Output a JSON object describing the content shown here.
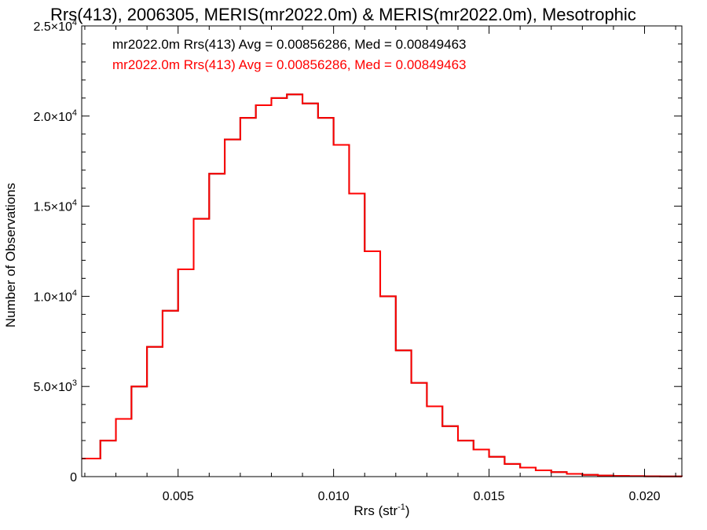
{
  "chart_data": {
    "type": "step-histogram",
    "title": "Rrs(413), 2006305, MERIS(mr2022.0m) & MERIS(mr2022.0m), Mesotrophic",
    "xlabel": "Rrs (str",
    "xlabel_sup": "-1",
    "xlabel_close": ")",
    "ylabel": "Number of Observations",
    "xlim": [
      0.0019,
      0.0212
    ],
    "ylim": [
      0,
      25000
    ],
    "x_ticks": [
      {
        "value": 0.005,
        "label": "0.005"
      },
      {
        "value": 0.01,
        "label": "0.010"
      },
      {
        "value": 0.015,
        "label": "0.015"
      },
      {
        "value": 0.02,
        "label": "0.020"
      }
    ],
    "y_ticks": [
      {
        "value": 0,
        "mant": "0",
        "exp": ""
      },
      {
        "value": 5000,
        "mant": "5.0×10",
        "exp": "3"
      },
      {
        "value": 10000,
        "mant": "1.0×10",
        "exp": "4"
      },
      {
        "value": 15000,
        "mant": "1.5×10",
        "exp": "4"
      },
      {
        "value": 20000,
        "mant": "2.0×10",
        "exp": "4"
      },
      {
        "value": 25000,
        "mant": "2.5×10",
        "exp": "4"
      }
    ],
    "legend_placement": "top-left",
    "series": [
      {
        "name": "mr2022.0m Rrs(413) Avg = 0.00856286, Med = 0.00849463",
        "color": "#000000",
        "points": [
          [
            0.0019,
            1000
          ],
          [
            0.0025,
            2000
          ],
          [
            0.003,
            3200
          ],
          [
            0.0035,
            5000
          ],
          [
            0.004,
            7200
          ],
          [
            0.0045,
            9200
          ],
          [
            0.005,
            11500
          ],
          [
            0.0055,
            14300
          ],
          [
            0.006,
            16800
          ],
          [
            0.0065,
            18700
          ],
          [
            0.007,
            19900
          ],
          [
            0.0075,
            20600
          ],
          [
            0.008,
            21000
          ],
          [
            0.0085,
            21200
          ],
          [
            0.009,
            20700
          ],
          [
            0.0095,
            19900
          ],
          [
            0.01,
            18400
          ],
          [
            0.0105,
            15700
          ],
          [
            0.011,
            12500
          ],
          [
            0.0115,
            10000
          ],
          [
            0.012,
            7000
          ],
          [
            0.0125,
            5200
          ],
          [
            0.013,
            3900
          ],
          [
            0.0135,
            2800
          ],
          [
            0.014,
            2000
          ],
          [
            0.0145,
            1500
          ],
          [
            0.015,
            1100
          ],
          [
            0.0155,
            700
          ],
          [
            0.016,
            500
          ],
          [
            0.0165,
            350
          ],
          [
            0.017,
            250
          ],
          [
            0.0175,
            150
          ],
          [
            0.018,
            100
          ],
          [
            0.0185,
            60
          ],
          [
            0.019,
            40
          ],
          [
            0.0195,
            25
          ],
          [
            0.02,
            15
          ],
          [
            0.0205,
            10
          ],
          [
            0.0212,
            5
          ]
        ]
      },
      {
        "name": "mr2022.0m Rrs(413) Avg = 0.00856286, Med = 0.00849463",
        "color": "#ff0000",
        "points": [
          [
            0.0019,
            1000
          ],
          [
            0.0025,
            2000
          ],
          [
            0.003,
            3200
          ],
          [
            0.0035,
            5000
          ],
          [
            0.004,
            7200
          ],
          [
            0.0045,
            9200
          ],
          [
            0.005,
            11500
          ],
          [
            0.0055,
            14300
          ],
          [
            0.006,
            16800
          ],
          [
            0.0065,
            18700
          ],
          [
            0.007,
            19900
          ],
          [
            0.0075,
            20600
          ],
          [
            0.008,
            21000
          ],
          [
            0.0085,
            21200
          ],
          [
            0.009,
            20700
          ],
          [
            0.0095,
            19900
          ],
          [
            0.01,
            18400
          ],
          [
            0.0105,
            15700
          ],
          [
            0.011,
            12500
          ],
          [
            0.0115,
            10000
          ],
          [
            0.012,
            7000
          ],
          [
            0.0125,
            5200
          ],
          [
            0.013,
            3900
          ],
          [
            0.0135,
            2800
          ],
          [
            0.014,
            2000
          ],
          [
            0.0145,
            1500
          ],
          [
            0.015,
            1100
          ],
          [
            0.0155,
            700
          ],
          [
            0.016,
            500
          ],
          [
            0.0165,
            350
          ],
          [
            0.017,
            250
          ],
          [
            0.0175,
            150
          ],
          [
            0.018,
            100
          ],
          [
            0.0185,
            60
          ],
          [
            0.019,
            40
          ],
          [
            0.0195,
            25
          ],
          [
            0.02,
            15
          ],
          [
            0.0205,
            10
          ],
          [
            0.0212,
            5
          ]
        ]
      }
    ]
  }
}
